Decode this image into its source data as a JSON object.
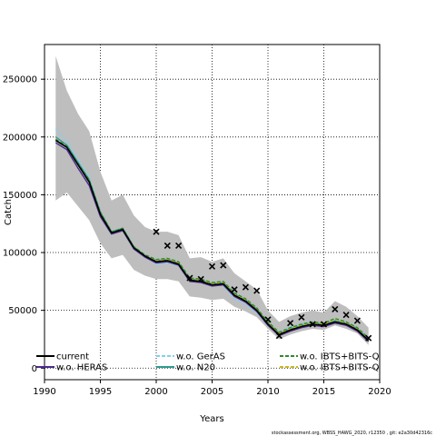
{
  "chart_data": {
    "type": "line",
    "xlabel": "Years",
    "ylabel": "Catch",
    "xlim": [
      1990,
      2020
    ],
    "ylim": [
      -10000,
      280000
    ],
    "xticks": [
      1990,
      1995,
      2000,
      2005,
      2010,
      2015,
      2020
    ],
    "yticks": [
      0,
      50000,
      100000,
      150000,
      200000,
      250000
    ],
    "grid": true,
    "grid_style": "dotted",
    "x": [
      1991,
      1992,
      1993,
      1994,
      1995,
      1996,
      1997,
      1998,
      1999,
      2000,
      2001,
      2002,
      2003,
      2004,
      2005,
      2006,
      2007,
      2008,
      2009,
      2010,
      2011,
      2012,
      2013,
      2014,
      2015,
      2016,
      2017,
      2018,
      2019
    ],
    "band": {
      "color": "#bebebe",
      "upper": [
        270000,
        240000,
        220000,
        205000,
        170000,
        145000,
        150000,
        132000,
        122000,
        118000,
        118000,
        115000,
        95000,
        96000,
        92000,
        95000,
        82000,
        75000,
        68000,
        50000,
        40000,
        45000,
        48000,
        50000,
        48000,
        58000,
        53000,
        45000,
        35000
      ],
      "lower": [
        145000,
        152000,
        140000,
        128000,
        108000,
        95000,
        98000,
        85000,
        80000,
        77000,
        77000,
        75000,
        62000,
        61000,
        59000,
        60000,
        53000,
        49000,
        44000,
        34000,
        25000,
        29000,
        32000,
        34000,
        33000,
        37000,
        34000,
        30000,
        20000
      ]
    },
    "series": [
      {
        "name": "current",
        "color": "#000000",
        "dash": "solid",
        "values": [
          197000,
          191000,
          176000,
          161000,
          133000,
          117000,
          120000,
          104000,
          97000,
          92000,
          93000,
          90000,
          76000,
          75000,
          72000,
          73000,
          63000,
          58000,
          50000,
          38000,
          29000,
          33000,
          36000,
          38000,
          37000,
          40000,
          38000,
          33000,
          24000
        ]
      },
      {
        "name": "w.o. HERAS",
        "color": "#4b2a8c",
        "dash": "solid",
        "values": [
          195000,
          189000,
          173000,
          158000,
          131000,
          116000,
          119000,
          103000,
          96000,
          91000,
          92000,
          89000,
          75000,
          74000,
          71000,
          72000,
          62000,
          57000,
          49000,
          37000,
          28000,
          32000,
          35000,
          37000,
          36000,
          39000,
          37000,
          32000,
          23000
        ]
      },
      {
        "name": "w.o. GerAS",
        "color": "#87ceeb",
        "dash": "dashed",
        "values": [
          207000,
          196000,
          180000,
          166000,
          134000,
          118000,
          121000,
          105000,
          97000,
          90000,
          91000,
          89000,
          76000,
          74000,
          71000,
          72000,
          60000,
          55000,
          48000,
          37000,
          30000,
          36000,
          38000,
          40000,
          37000,
          42000,
          39000,
          34000,
          26000
        ]
      },
      {
        "name": "w.o. N20",
        "color": "#2e9b8f",
        "dash": "solid",
        "values": [
          200000,
          193000,
          178000,
          163000,
          135000,
          118000,
          121000,
          105000,
          97000,
          93000,
          94000,
          91000,
          77000,
          76000,
          73000,
          74000,
          64000,
          59000,
          51000,
          39000,
          30000,
          34000,
          37000,
          39000,
          38000,
          41000,
          39000,
          34000,
          25000
        ]
      },
      {
        "name": "w.o. IBTS+BITS-Q",
        "color": "#2e8b2e",
        "dash": "dashed",
        "values": [
          198000,
          192000,
          177000,
          163000,
          135000,
          118000,
          121000,
          105000,
          98000,
          94000,
          95000,
          92000,
          78000,
          77000,
          74000,
          75000,
          65000,
          60000,
          52000,
          40000,
          31000,
          35000,
          38000,
          40000,
          39000,
          43000,
          40000,
          35000,
          26000
        ]
      },
      {
        "name": "w.o. IBTS+BITS-Q",
        "color": "#c8b820",
        "dash": "dashed",
        "values": [
          198000,
          191000,
          176000,
          162000,
          134000,
          117000,
          120000,
          104000,
          97000,
          93000,
          94000,
          91000,
          77000,
          76000,
          73000,
          74000,
          64000,
          59000,
          51000,
          39000,
          30000,
          34000,
          37000,
          39000,
          38000,
          42000,
          39000,
          34000,
          25000
        ]
      }
    ],
    "observed": {
      "marker": "x",
      "x": [
        2000,
        2001,
        2002,
        2003,
        2004,
        2005,
        2006,
        2007,
        2008,
        2009,
        2010,
        2011,
        2012,
        2013,
        2014,
        2015,
        2016,
        2017,
        2018,
        2019
      ],
      "values": [
        118000,
        106000,
        106000,
        78000,
        77000,
        88000,
        89000,
        68000,
        70000,
        67000,
        42000,
        28000,
        39000,
        44000,
        38000,
        38000,
        51000,
        46000,
        41000,
        26000
      ]
    },
    "legend": {
      "placement": "bottom, inside plot, three columns",
      "entries": [
        "current",
        "w.o. HERAS",
        "w.o. GerAS",
        "w.o. N20",
        "w.o. IBTS+BITS-Q",
        "w.o. IBTS+BITS-Q"
      ]
    }
  },
  "footer": "stockassessment.org,  WBSS_HAWG_2020,  r12350 ,  git:  e2a30d42316c"
}
